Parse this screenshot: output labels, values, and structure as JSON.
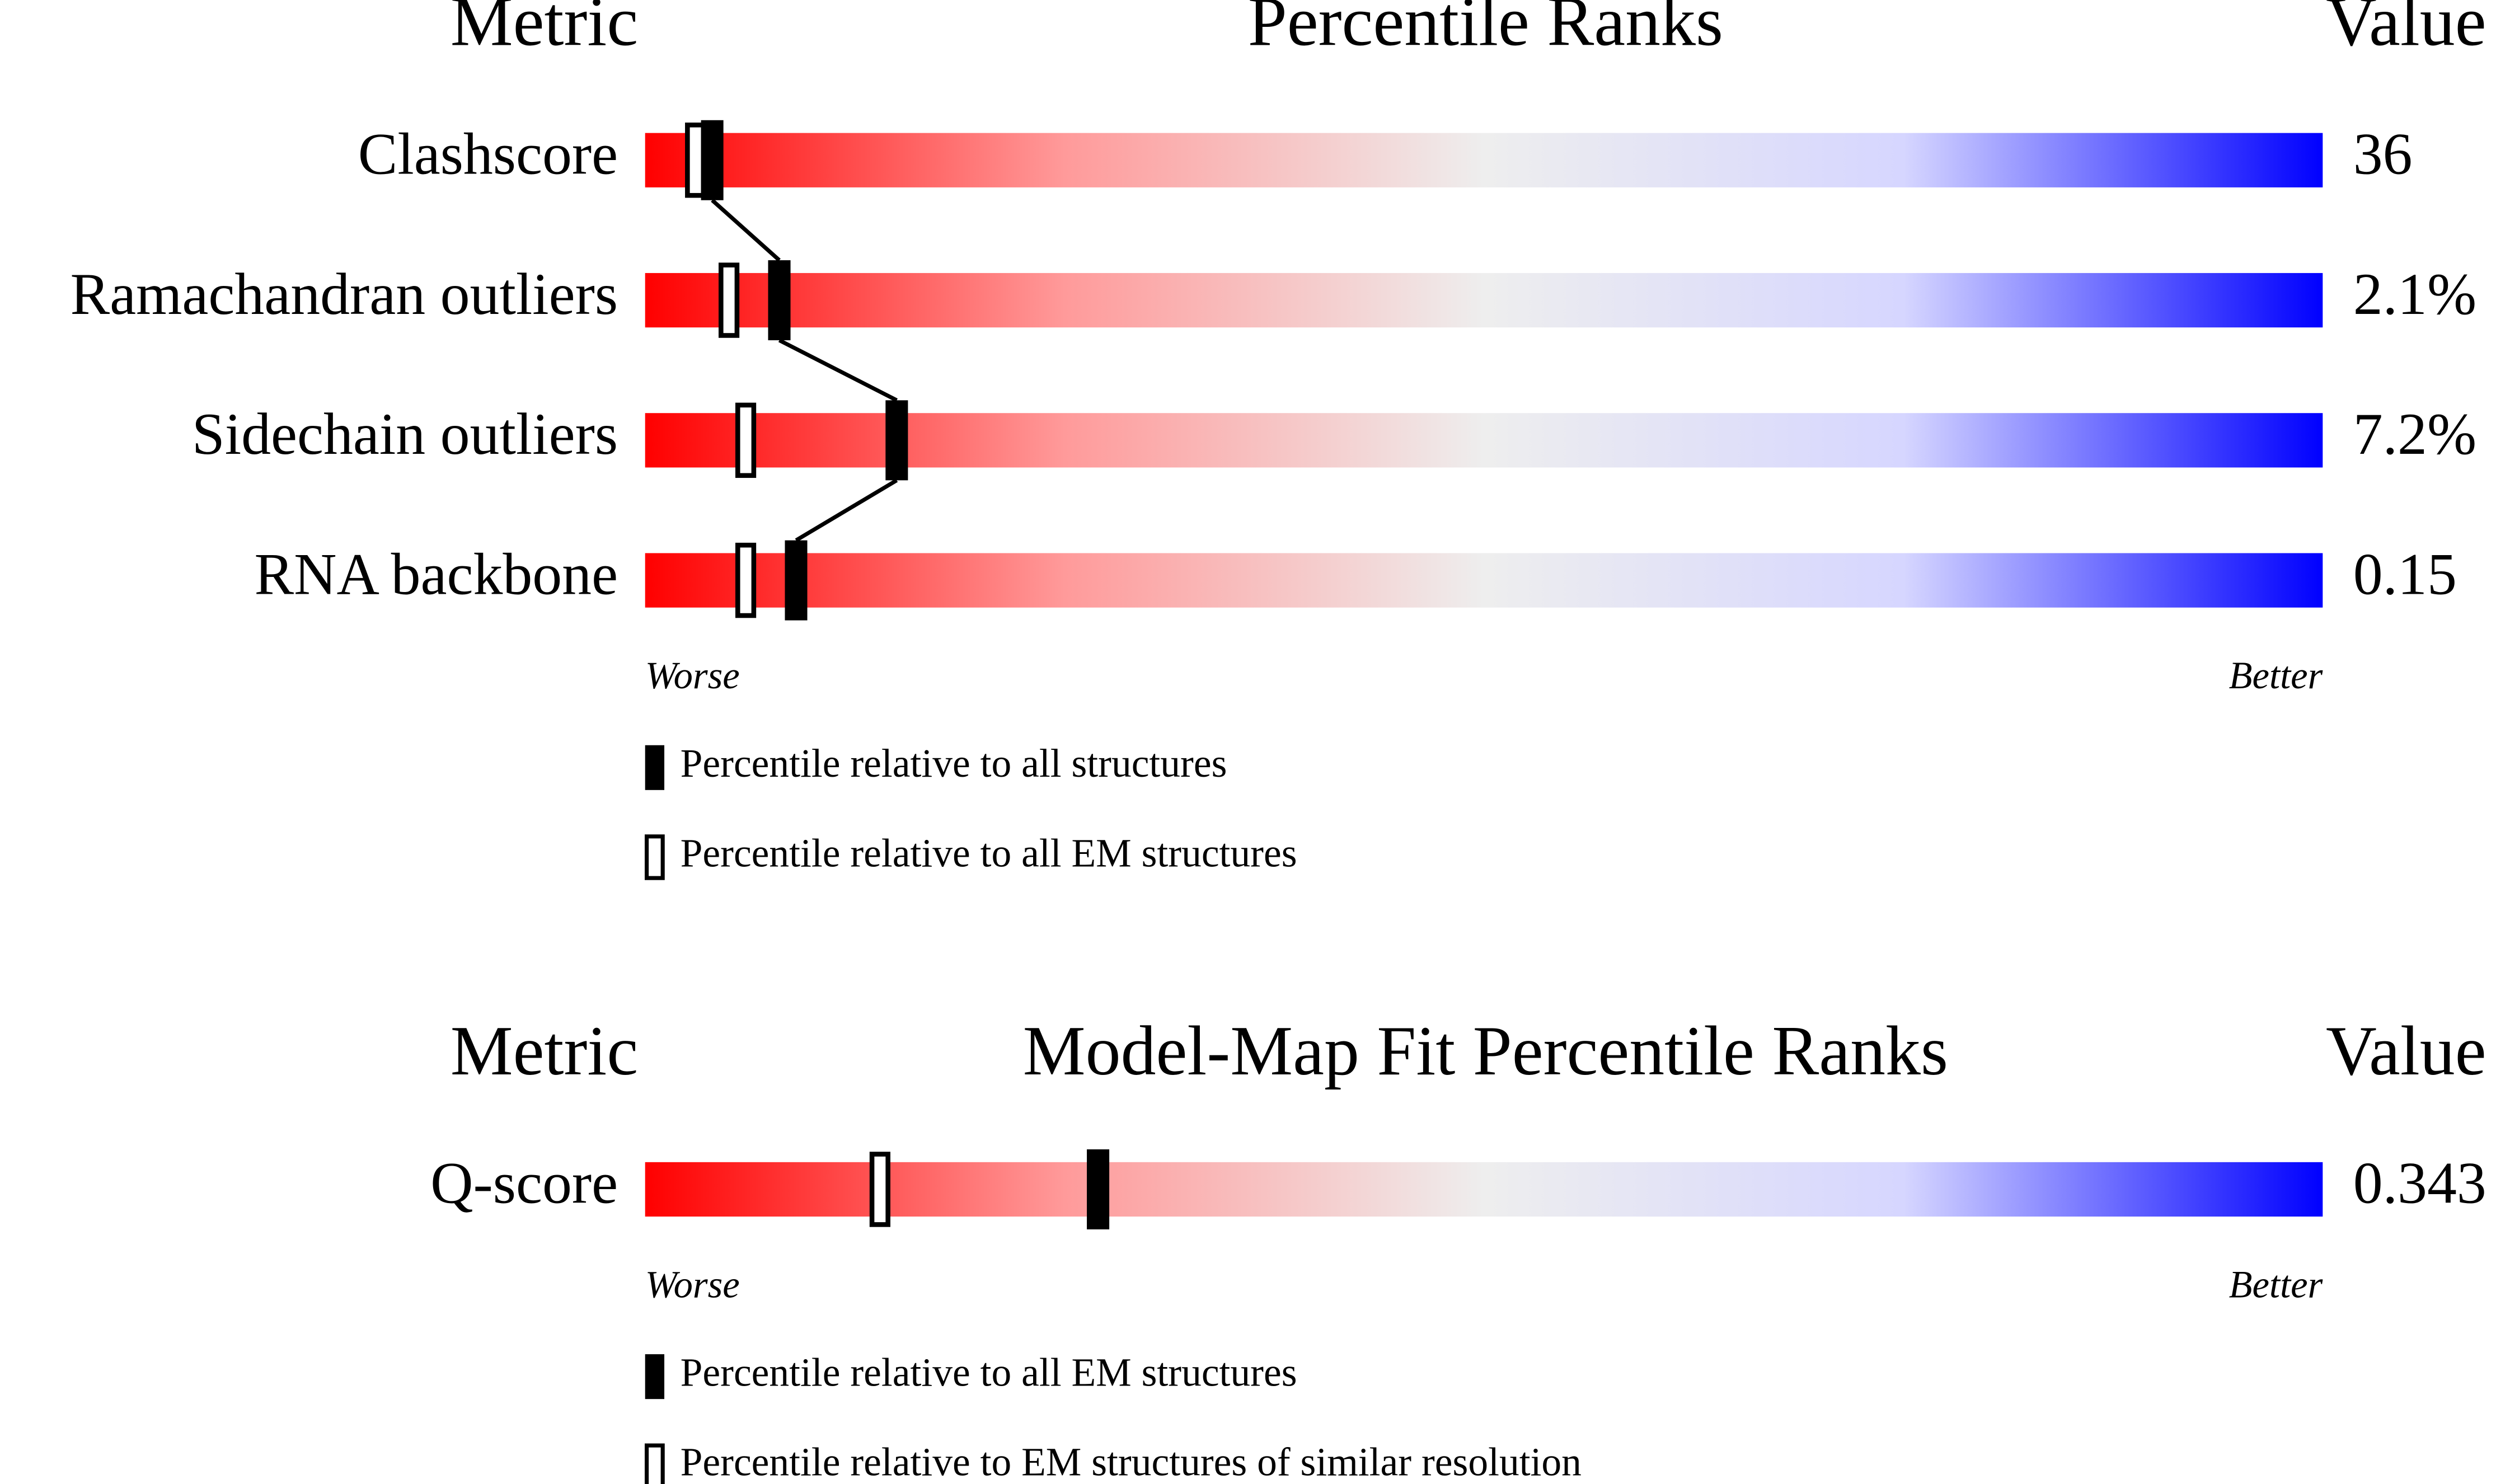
{
  "percentile_range": [
    0,
    100
  ],
  "sections": [
    {
      "headers": {
        "metric": "Metric",
        "title": "Percentile Ranks",
        "value": "Value"
      },
      "rows": [
        {
          "metric": "Clashscore",
          "value": "36",
          "filled": 4,
          "open": 3
        },
        {
          "metric": "Ramachandran outliers",
          "value": "2.1%",
          "filled": 8,
          "open": 5
        },
        {
          "metric": "Sidechain outliers",
          "value": "7.2%",
          "filled": 15,
          "open": 6
        },
        {
          "metric": "RNA backbone",
          "value": "0.15",
          "filled": 9,
          "open": 6
        }
      ],
      "worse": "Worse",
      "better": "Better",
      "legend": {
        "filled": "Percentile relative to all structures",
        "open": "Percentile relative to all EM structures"
      }
    },
    {
      "headers": {
        "metric": "Metric",
        "title": "Model-Map Fit Percentile Ranks",
        "value": "Value"
      },
      "rows": [
        {
          "metric": "Q-score",
          "value": "0.343",
          "filled": 27,
          "open": 14
        }
      ],
      "worse": "Worse",
      "better": "Better",
      "legend": {
        "filled": "Percentile relative to all EM structures",
        "open": "Percentile relative to EM structures of similar resolution"
      }
    }
  ]
}
